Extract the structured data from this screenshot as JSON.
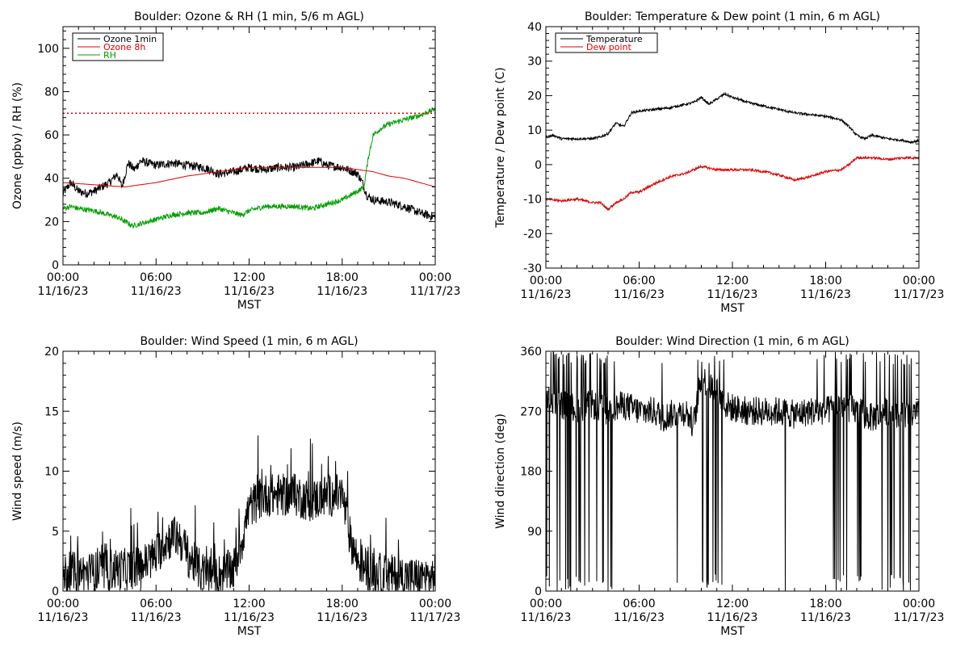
{
  "colors": {
    "black": "#000000",
    "red": "#dd0000",
    "green": "#00a000",
    "frame": "#000000"
  },
  "charts": [
    {
      "id": "ozone-rh",
      "type": "line",
      "title": "Boulder: Ozone & RH (1 min, 5/6 m AGL)",
      "ylabel": "Ozone (ppbv) / RH (%)",
      "xlabel": "MST",
      "ylim": [
        0,
        110
      ],
      "yticks": [
        "0",
        "20",
        "40",
        "60",
        "80",
        "100"
      ],
      "yticks_values": [
        0,
        20,
        40,
        60,
        80,
        100
      ],
      "xticks": [
        {
          "time": "00:00",
          "date": "11/16/23"
        },
        {
          "time": "06:00",
          "date": "11/16/23"
        },
        {
          "time": "12:00",
          "date": "11/16/23"
        },
        {
          "time": "18:00",
          "date": "11/16/23"
        },
        {
          "time": "00:00",
          "date": "11/17/23"
        }
      ],
      "xticks_hours": [
        0,
        6,
        12,
        18,
        24
      ],
      "xlim_hours": [
        0,
        24
      ],
      "threshold": 70,
      "legend": {
        "placement": "top-left",
        "entries": [
          "Ozone 1min",
          "Ozone 8h",
          "RH"
        ]
      },
      "series": [
        {
          "name": "Ozone 1min",
          "color": "#000000",
          "noise": 2.0,
          "spiky": false,
          "x": [
            0,
            0.5,
            1,
            1.5,
            2,
            2.5,
            3,
            3.5,
            3.8,
            4.2,
            4.6,
            5,
            5.5,
            6,
            7,
            8,
            9,
            9.5,
            10,
            11,
            12,
            13,
            14,
            15,
            16,
            16.5,
            17,
            18,
            19,
            19.3,
            19.6,
            20,
            21,
            22,
            23,
            23.5,
            24
          ],
          "y": [
            33,
            38,
            34,
            33,
            34,
            36,
            38,
            42,
            36,
            47,
            44,
            48,
            47,
            46,
            47,
            46,
            45,
            44,
            42,
            43,
            45,
            44,
            45,
            45,
            47,
            48,
            46,
            45,
            42,
            38,
            32,
            30,
            29,
            27,
            24,
            23,
            22
          ]
        },
        {
          "name": "Ozone 8h",
          "color": "#dd0000",
          "noise": 0,
          "spiky": false,
          "x": [
            0,
            2,
            4,
            6,
            8,
            10,
            12,
            14,
            16,
            18,
            19,
            20,
            21,
            22,
            23,
            24
          ],
          "y": [
            38,
            37,
            36,
            38,
            41,
            43,
            45,
            45,
            45,
            45,
            44,
            43,
            41,
            40,
            38,
            36
          ]
        },
        {
          "name": "RH",
          "color": "#00a000",
          "noise": 1.2,
          "spiky": false,
          "x": [
            0,
            0.5,
            1,
            2,
            3,
            3.5,
            4,
            4.5,
            5,
            6,
            7,
            8,
            9,
            10,
            10.5,
            11,
            11.5,
            12,
            13,
            14,
            15,
            16,
            17,
            18,
            19,
            19.4,
            19.7,
            20,
            20.5,
            21,
            22,
            23,
            24
          ],
          "y": [
            26,
            27,
            26,
            25,
            23,
            22,
            20,
            18,
            19,
            21,
            23,
            24,
            24,
            26,
            25,
            24,
            23,
            25,
            27,
            27,
            27,
            26,
            28,
            30,
            34,
            36,
            50,
            60,
            63,
            65,
            67,
            69,
            72
          ]
        }
      ]
    },
    {
      "id": "temp-dew",
      "type": "line",
      "title": "Boulder: Temperature & Dew point (1 min, 6 m AGL)",
      "ylabel": "Temperature / Dew point (C)",
      "xlabel": "MST",
      "ylim": [
        -30,
        40
      ],
      "yticks": [
        "-30",
        "-20",
        "-10",
        "0",
        "10",
        "20",
        "30",
        "40"
      ],
      "yticks_values": [
        -30,
        -20,
        -10,
        0,
        10,
        20,
        30,
        40
      ],
      "xticks": [
        {
          "time": "00:00",
          "date": "11/16/23"
        },
        {
          "time": "06:00",
          "date": "11/16/23"
        },
        {
          "time": "12:00",
          "date": "11/16/23"
        },
        {
          "time": "18:00",
          "date": "11/16/23"
        },
        {
          "time": "00:00",
          "date": "11/17/23"
        }
      ],
      "xticks_hours": [
        0,
        6,
        12,
        18,
        24
      ],
      "xlim_hours": [
        0,
        24
      ],
      "legend": {
        "placement": "top-left",
        "entries": [
          "Temperature",
          "Dew point"
        ]
      },
      "series": [
        {
          "name": "Temperature",
          "color": "#000000",
          "noise": 0.35,
          "spiky": false,
          "x": [
            0,
            0.5,
            1,
            2,
            3,
            3.5,
            4,
            4.5,
            5,
            5.5,
            6,
            7,
            8,
            9,
            9.5,
            10,
            10.5,
            11,
            11.5,
            12,
            13,
            14,
            15,
            16,
            17,
            18,
            19,
            19.5,
            20,
            20.5,
            21,
            22,
            23,
            23.5,
            24
          ],
          "y": [
            8,
            8.5,
            7.5,
            7.5,
            7.5,
            8,
            9,
            12,
            11,
            15,
            15.5,
            16,
            16.5,
            17.5,
            18,
            19.5,
            17.5,
            19,
            20.5,
            19.5,
            18,
            17,
            16,
            15,
            14.5,
            14,
            13,
            11,
            8.5,
            7.5,
            8.5,
            7.5,
            7,
            6.5,
            7
          ]
        },
        {
          "name": "Dew point",
          "color": "#dd0000",
          "noise": 0.35,
          "spiky": false,
          "x": [
            0,
            1,
            2,
            3,
            3.5,
            4,
            4.5,
            5,
            5.5,
            6,
            7,
            8,
            9,
            9.5,
            10,
            11,
            12,
            13,
            14,
            15,
            16,
            17,
            18,
            19,
            19.5,
            20,
            21,
            22,
            23,
            24
          ],
          "y": [
            -10,
            -10.5,
            -10,
            -11,
            -11,
            -13,
            -11,
            -10,
            -8,
            -8,
            -5.5,
            -3.5,
            -2.5,
            -1.5,
            -0.5,
            -1.5,
            -1.5,
            -1.5,
            -2,
            -3,
            -4.5,
            -3.5,
            -2,
            -1.5,
            0,
            2,
            2,
            1.5,
            2,
            2
          ]
        }
      ]
    },
    {
      "id": "wind-speed",
      "type": "line",
      "title": "Boulder: Wind Speed (1 min, 6 m AGL)",
      "ylabel": "Wind speed (m/s)",
      "xlabel": "MST",
      "ylim": [
        0,
        20
      ],
      "yticks": [
        "0",
        "5",
        "10",
        "15",
        "20"
      ],
      "yticks_values": [
        0,
        5,
        10,
        15,
        20
      ],
      "xticks": [
        {
          "time": "00:00",
          "date": "11/16/23"
        },
        {
          "time": "06:00",
          "date": "11/16/23"
        },
        {
          "time": "12:00",
          "date": "11/16/23"
        },
        {
          "time": "18:00",
          "date": "11/16/23"
        },
        {
          "time": "00:00",
          "date": "11/17/23"
        }
      ],
      "xticks_hours": [
        0,
        6,
        12,
        18,
        24
      ],
      "xlim_hours": [
        0,
        24
      ],
      "series": [
        {
          "name": "Wind speed",
          "color": "#000000",
          "noise": 1.8,
          "spiky": false,
          "x": [
            0,
            1,
            2,
            3,
            4,
            5,
            6,
            6.5,
            7,
            7.5,
            8,
            9,
            10,
            11,
            11.5,
            12,
            12.5,
            13,
            14,
            15,
            16,
            17,
            18,
            18.5,
            19,
            20,
            21,
            22,
            23,
            24
          ],
          "y": [
            1.5,
            1.5,
            1.5,
            1.8,
            1.8,
            2.0,
            3.0,
            4.0,
            4.5,
            4.5,
            3.0,
            1.5,
            1.3,
            1.8,
            4.0,
            7.0,
            7.5,
            8.0,
            8.0,
            8.0,
            7.5,
            8.0,
            8.0,
            4.5,
            2.5,
            1.5,
            1.3,
            1.2,
            1.0,
            1.2
          ]
        }
      ]
    },
    {
      "id": "wind-dir",
      "type": "line",
      "title": "Boulder: Wind Direction (1 min, 6 m AGL)",
      "ylabel": "Wind direction (deg)",
      "xlabel": "MST",
      "ylim": [
        0,
        360
      ],
      "yticks": [
        "0",
        "90",
        "180",
        "270",
        "360"
      ],
      "yticks_values": [
        0,
        90,
        180,
        270,
        360
      ],
      "xticks": [
        {
          "time": "00:00",
          "date": "11/16/23"
        },
        {
          "time": "06:00",
          "date": "11/16/23"
        },
        {
          "time": "12:00",
          "date": "11/16/23"
        },
        {
          "time": "18:00",
          "date": "11/16/23"
        },
        {
          "time": "00:00",
          "date": "11/17/23"
        }
      ],
      "xticks_hours": [
        0,
        6,
        12,
        18,
        24
      ],
      "xlim_hours": [
        0,
        24
      ],
      "series": [
        {
          "name": "Wind direction",
          "color": "#000000",
          "noise": 22,
          "spiky": true,
          "spike_windows": [
            [
              0,
              4.5
            ],
            [
              10,
              11.5
            ],
            [
              18.5,
              23.5
            ]
          ],
          "x": [
            0,
            1,
            2,
            3,
            4,
            5,
            6,
            7,
            7.5,
            8,
            9,
            9.5,
            10,
            11,
            11.5,
            12,
            13,
            14,
            15,
            16,
            17,
            18,
            19,
            20,
            21,
            22,
            23,
            24
          ],
          "y": [
            290,
            280,
            275,
            280,
            270,
            280,
            270,
            270,
            260,
            265,
            270,
            250,
            320,
            300,
            280,
            275,
            270,
            270,
            270,
            265,
            270,
            270,
            280,
            270,
            260,
            270,
            265,
            265
          ]
        }
      ]
    }
  ]
}
